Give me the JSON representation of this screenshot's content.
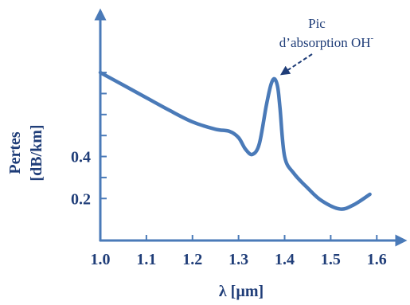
{
  "chart_data": {
    "type": "line",
    "xlabel": "λ [µm]",
    "ylabel_line1": "Pertes",
    "ylabel_line2": "[dB/km]",
    "annotation": {
      "line1": "Pic",
      "line2": "d’absorption OH",
      "superscript": "-",
      "points_to": [
        1.38,
        0.77
      ]
    },
    "colors": {
      "line": "#4a7ab8",
      "axis": "#4a7ab8",
      "labels": "#1f3d78"
    },
    "x_ticks": [
      {
        "value": 1.0,
        "label": "1.0"
      },
      {
        "value": 1.1,
        "label": "1.1"
      },
      {
        "value": 1.2,
        "label": "1.2"
      },
      {
        "value": 1.3,
        "label": "1.3"
      },
      {
        "value": 1.4,
        "label": "1.4"
      },
      {
        "value": 1.5,
        "label": "1.5"
      },
      {
        "value": 1.6,
        "label": "1.6"
      }
    ],
    "y_ticks": [
      {
        "value": 0.2,
        "label": "0.2"
      },
      {
        "value": 0.3,
        "label": ""
      },
      {
        "value": 0.4,
        "label": "0.4"
      },
      {
        "value": 0.5,
        "label": ""
      },
      {
        "value": 0.6,
        "label": ""
      },
      {
        "value": 0.7,
        "label": ""
      },
      {
        "value": 0.8,
        "label": ""
      }
    ],
    "xlim": [
      1.0,
      1.66
    ],
    "ylim": [
      0.0,
      1.1
    ],
    "series": [
      {
        "x": [
          1.0,
          1.05,
          1.1,
          1.15,
          1.2,
          1.25,
          1.28,
          1.3,
          1.315,
          1.33,
          1.345,
          1.36,
          1.37,
          1.378,
          1.385,
          1.39,
          1.4,
          1.42,
          1.45,
          1.48,
          1.52,
          1.55,
          1.585
        ],
        "y": [
          0.8,
          0.74,
          0.68,
          0.62,
          0.565,
          0.53,
          0.52,
          0.49,
          0.435,
          0.41,
          0.46,
          0.64,
          0.74,
          0.77,
          0.73,
          0.63,
          0.4,
          0.32,
          0.25,
          0.19,
          0.15,
          0.17,
          0.22
        ]
      }
    ]
  }
}
